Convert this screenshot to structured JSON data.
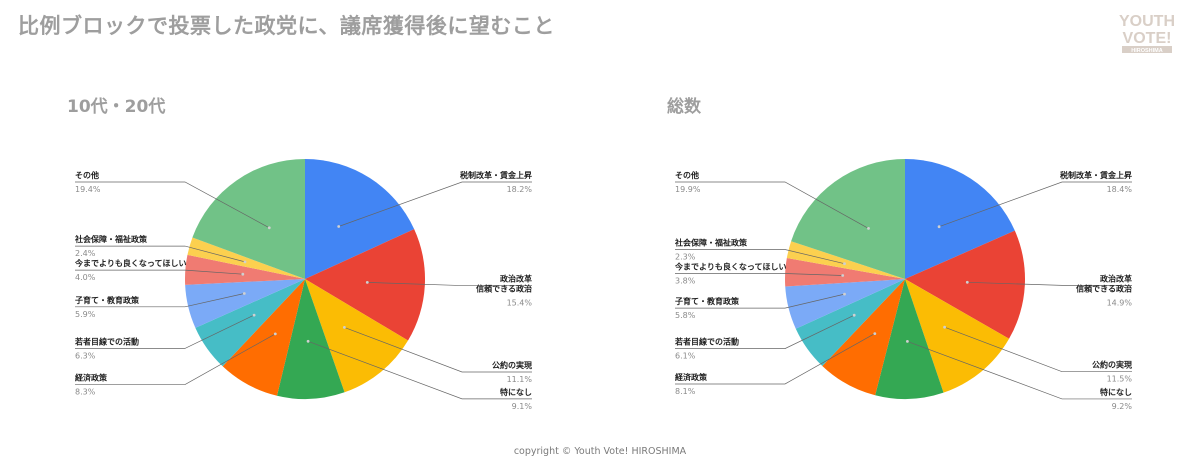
{
  "header": {
    "title": "比例ブロックで投票した政党に、議席獲得後に望むこと",
    "logo_line1": "YOUTH",
    "logo_line2": "VOTE!",
    "logo_line3": "HIROSHIMA"
  },
  "footer": {
    "copyright": "copyright © Youth Vote! HIROSHIMA"
  },
  "colors": {
    "税制改革・賃金上昇": "#4285f4",
    "政治改革 信頼できる政治": "#ea4335",
    "公約の実現": "#fbbc04",
    "特になし": "#34a853",
    "経済政策": "#ff6d01",
    "若者目線での活動": "#46bdc6",
    "子育て・教育政策": "#7baaf7",
    "今までよりも良くなってほしい": "#f07b72",
    "社会保障・福祉政策": "#fcd04f",
    "その他": "#71c287"
  },
  "chart_data": [
    {
      "type": "pie",
      "title": "10代・20代",
      "slices": [
        {
          "label": "税制改革・賃金上昇",
          "value": 18.2,
          "value_label": "18.2%"
        },
        {
          "label": "政治改革\n信頼できる政治",
          "value": 15.4,
          "value_label": "15.4%"
        },
        {
          "label": "公約の実現",
          "value": 11.1,
          "value_label": "11.1%"
        },
        {
          "label": "特になし",
          "value": 9.1,
          "value_label": "9.1%"
        },
        {
          "label": "経済政策",
          "value": 8.3,
          "value_label": "8.3%"
        },
        {
          "label": "若者目線での活動",
          "value": 6.3,
          "value_label": "6.3%"
        },
        {
          "label": "子育て・教育政策",
          "value": 5.9,
          "value_label": "5.9%"
        },
        {
          "label": "今までよりも良くなってほしい",
          "value": 4.0,
          "value_label": "4.0%"
        },
        {
          "label": "社会保障・福祉政策",
          "value": 2.4,
          "value_label": "2.4%"
        },
        {
          "label": "その他",
          "value": 19.4,
          "value_label": "19.4%"
        }
      ]
    },
    {
      "type": "pie",
      "title": "総数",
      "slices": [
        {
          "label": "税制改革・賃金上昇",
          "value": 18.4,
          "value_label": "18.4%"
        },
        {
          "label": "政治改革\n信頼できる政治",
          "value": 14.9,
          "value_label": "14.9%"
        },
        {
          "label": "公約の実現",
          "value": 11.5,
          "value_label": "11.5%"
        },
        {
          "label": "特になし",
          "value": 9.2,
          "value_label": "9.2%"
        },
        {
          "label": "経済政策",
          "value": 8.1,
          "value_label": "8.1%"
        },
        {
          "label": "若者目線での活動",
          "value": 6.1,
          "value_label": "6.1%"
        },
        {
          "label": "子育て・教育政策",
          "value": 5.8,
          "value_label": "5.8%"
        },
        {
          "label": "今までよりも良くなってほしい",
          "value": 3.8,
          "value_label": "3.8%"
        },
        {
          "label": "社会保障・福祉政策",
          "value": 2.3,
          "value_label": "2.3%"
        },
        {
          "label": "その他",
          "value": 19.9,
          "value_label": "19.9%"
        }
      ]
    }
  ]
}
